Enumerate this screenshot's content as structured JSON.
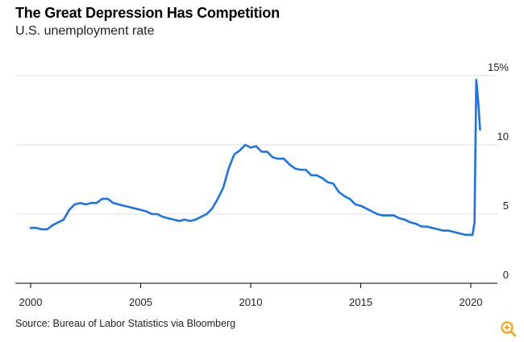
{
  "header": {
    "title": "The Great Depression Has Competition",
    "subtitle": "U.S. unemployment rate"
  },
  "footer": {
    "source": "Source: Bureau of Labor Statistics via Bloomberg"
  },
  "icons": {
    "zoom": "zoom-in-icon"
  },
  "colors": {
    "line": "#1a73e8",
    "zoom": "#f5a623",
    "grid": "#e2e2e2",
    "axis": "#000000"
  },
  "chart_data": {
    "type": "line",
    "title": "The Great Depression Has Competition",
    "subtitle": "U.S. unemployment rate",
    "xlabel": "",
    "ylabel": "",
    "xlim": [
      2000,
      2021.0
    ],
    "ylim": [
      0,
      15
    ],
    "x_ticks": [
      2000,
      2005,
      2010,
      2015,
      2020
    ],
    "x_tick_labels": [
      "2000",
      "2005",
      "2010",
      "2015",
      "2020"
    ],
    "y_ticks": [
      0,
      5,
      10,
      15
    ],
    "y_tick_labels": [
      "0",
      "5",
      "10",
      "15%"
    ],
    "grid": true,
    "series": [
      {
        "name": "U.S. unemployment rate",
        "x": [
          2000.0,
          2000.25,
          2000.5,
          2000.75,
          2001.0,
          2001.25,
          2001.5,
          2001.75,
          2002.0,
          2002.25,
          2002.5,
          2002.75,
          2003.0,
          2003.25,
          2003.5,
          2003.75,
          2004.0,
          2004.25,
          2004.5,
          2004.75,
          2005.0,
          2005.25,
          2005.5,
          2005.75,
          2006.0,
          2006.25,
          2006.5,
          2006.75,
          2007.0,
          2007.25,
          2007.5,
          2007.75,
          2008.0,
          2008.25,
          2008.5,
          2008.75,
          2009.0,
          2009.25,
          2009.5,
          2009.75,
          2010.0,
          2010.25,
          2010.5,
          2010.75,
          2011.0,
          2011.25,
          2011.5,
          2011.75,
          2012.0,
          2012.25,
          2012.5,
          2012.75,
          2013.0,
          2013.25,
          2013.5,
          2013.75,
          2014.0,
          2014.25,
          2014.5,
          2014.75,
          2015.0,
          2015.25,
          2015.5,
          2015.75,
          2016.0,
          2016.25,
          2016.5,
          2016.75,
          2017.0,
          2017.25,
          2017.5,
          2017.75,
          2018.0,
          2018.25,
          2018.5,
          2018.75,
          2019.0,
          2019.25,
          2019.5,
          2019.75,
          2020.0,
          2020.08,
          2020.17,
          2020.25,
          2020.33,
          2020.42
        ],
        "values": [
          4.0,
          4.0,
          3.9,
          3.9,
          4.2,
          4.4,
          4.6,
          5.3,
          5.7,
          5.8,
          5.7,
          5.8,
          5.8,
          6.1,
          6.1,
          5.8,
          5.7,
          5.6,
          5.5,
          5.4,
          5.3,
          5.2,
          5.0,
          5.0,
          4.8,
          4.7,
          4.6,
          4.5,
          4.6,
          4.5,
          4.6,
          4.8,
          5.0,
          5.4,
          6.1,
          6.9,
          8.3,
          9.3,
          9.6,
          10.0,
          9.8,
          9.9,
          9.5,
          9.5,
          9.1,
          9.0,
          9.0,
          8.6,
          8.3,
          8.2,
          8.2,
          7.8,
          7.8,
          7.6,
          7.3,
          7.2,
          6.6,
          6.3,
          6.1,
          5.7,
          5.6,
          5.4,
          5.2,
          5.0,
          4.9,
          4.9,
          4.9,
          4.7,
          4.6,
          4.4,
          4.3,
          4.1,
          4.1,
          4.0,
          3.9,
          3.8,
          3.8,
          3.7,
          3.6,
          3.5,
          3.5,
          3.5,
          4.4,
          14.7,
          13.3,
          11.1
        ]
      }
    ]
  }
}
